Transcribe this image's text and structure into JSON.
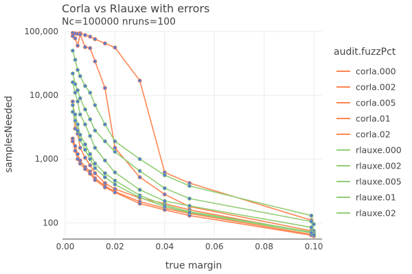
{
  "chart_data": {
    "type": "line",
    "title": "Corla vs Rlauxe with errors",
    "subtitle": "Nc=100000 nruns=100",
    "xlabel": "true margin",
    "ylabel": "samplesNeeded",
    "xlim": [
      0,
      0.1
    ],
    "ylim": [
      60,
      100000
    ],
    "yscale": "log",
    "x_ticks": [
      "0.00",
      "0.02",
      "0.04",
      "0.06",
      "0.08",
      "0.10"
    ],
    "y_ticks": [
      "100",
      "1,000",
      "10,000",
      "100,000"
    ],
    "grid": true,
    "legend_title": "audit.fuzzPct",
    "legend_position": "right",
    "marker_color": "#5a7bd0",
    "x": [
      0.003,
      0.004,
      0.005,
      0.006,
      0.008,
      0.01,
      0.012,
      0.016,
      0.02,
      0.03,
      0.04,
      0.05,
      0.099,
      0.1
    ],
    "series": [
      {
        "name": "corla.000",
        "color": "#ff8450",
        "values": [
          95000,
          93000,
          92000,
          94000,
          88000,
          83000,
          76000,
          65000,
          56000,
          17000,
          620,
          420,
          110,
          68
        ]
      },
      {
        "name": "corla.002",
        "color": "#ff8450",
        "values": [
          85000,
          78000,
          60000,
          90000,
          57000,
          55000,
          34000,
          13000,
          1500,
          520,
          280,
          180,
          75,
          65
        ]
      },
      {
        "name": "corla.005",
        "color": "#ff8450",
        "values": [
          8000,
          3000,
          2500,
          1500,
          1050,
          800,
          600,
          420,
          340,
          245,
          200,
          160,
          70,
          64
        ]
      },
      {
        "name": "corla.01",
        "color": "#ff8450",
        "values": [
          2100,
          1600,
          1200,
          950,
          750,
          640,
          500,
          380,
          310,
          215,
          170,
          140,
          66,
          63
        ]
      },
      {
        "name": "corla.02",
        "color": "#ff8450",
        "values": [
          1900,
          1350,
          1000,
          850,
          700,
          590,
          470,
          360,
          300,
          200,
          160,
          130,
          64,
          62
        ]
      },
      {
        "name": "rlauxe.000",
        "color": "#90cd74",
        "values": [
          50000,
          36000,
          25000,
          20000,
          14000,
          11000,
          7000,
          3500,
          1900,
          1000,
          560,
          380,
          130,
          95
        ]
      },
      {
        "name": "rlauxe.002",
        "color": "#90cd74",
        "values": [
          22000,
          15000,
          12000,
          9000,
          6000,
          4200,
          2800,
          1900,
          1300,
          650,
          350,
          240,
          105,
          75
        ]
      },
      {
        "name": "rlauxe.005",
        "color": "#90cd74",
        "values": [
          16000,
          11000,
          8000,
          5000,
          3500,
          2300,
          1500,
          950,
          620,
          330,
          220,
          185,
          85,
          70
        ]
      },
      {
        "name": "rlauxe.01",
        "color": "#90cd74",
        "values": [
          7000,
          5000,
          3500,
          2400,
          1700,
          1200,
          850,
          600,
          460,
          270,
          190,
          150,
          72,
          66
        ]
      },
      {
        "name": "rlauxe.02",
        "color": "#90cd74",
        "values": [
          5500,
          4000,
          2800,
          2000,
          1400,
          1000,
          720,
          520,
          400,
          250,
          180,
          145,
          70,
          65
        ]
      }
    ]
  }
}
